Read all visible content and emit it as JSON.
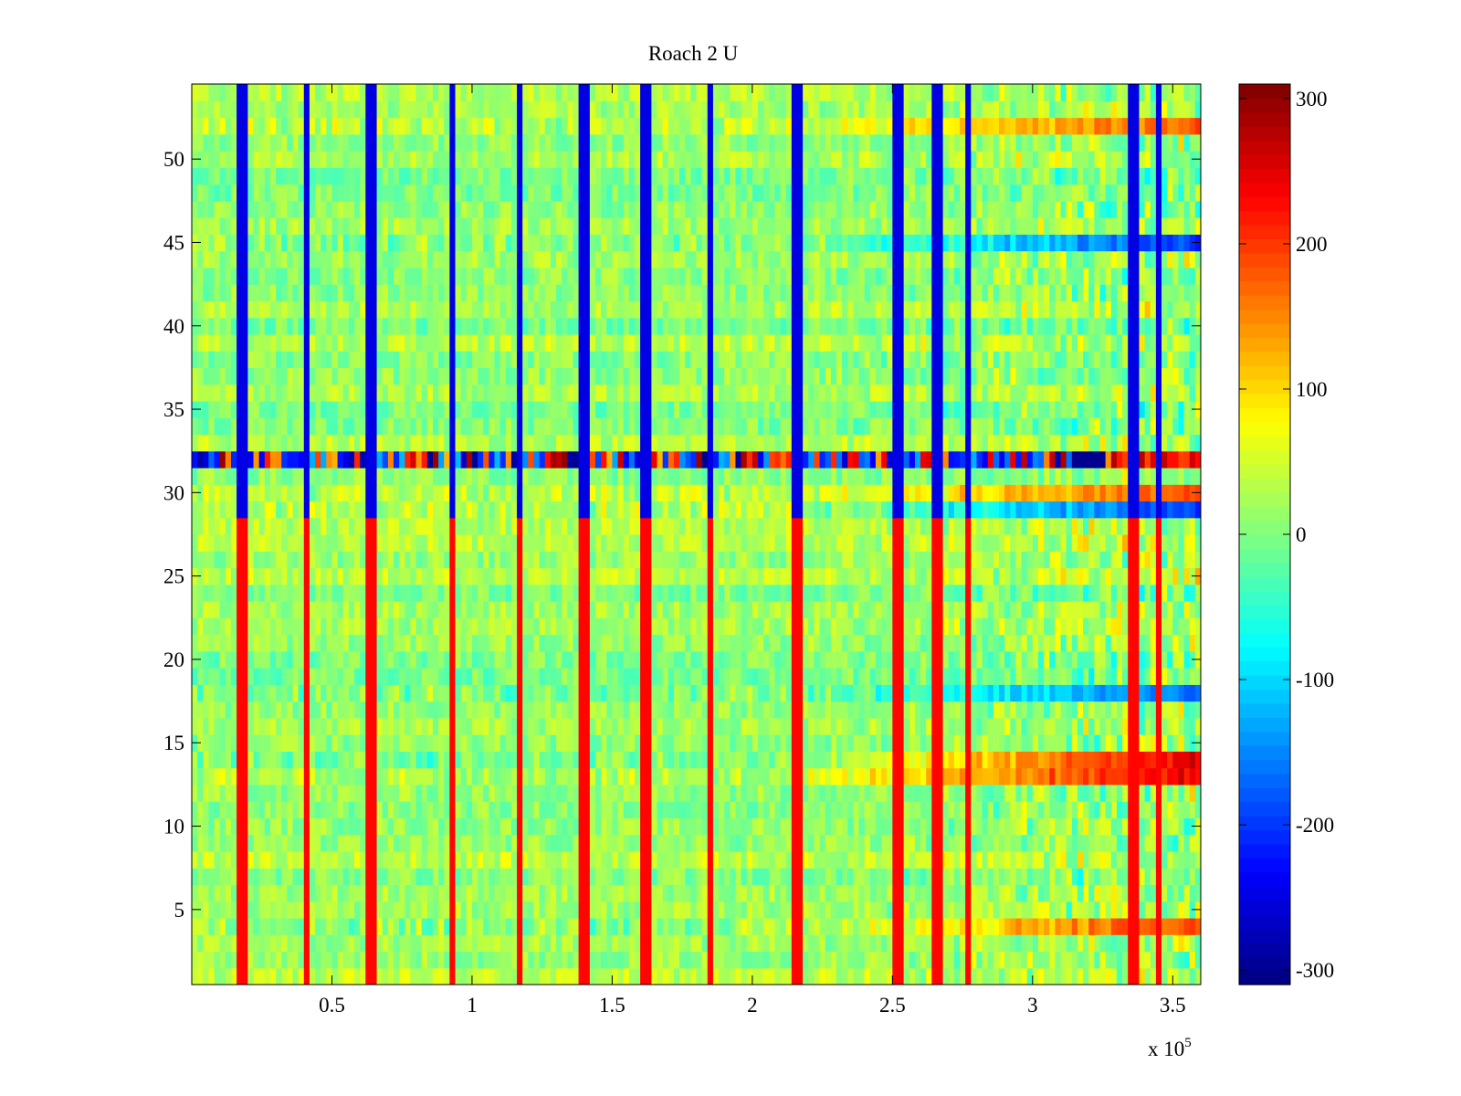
{
  "chart_data": {
    "type": "heatmap",
    "title": "Roach 2 U",
    "xlabel": "",
    "ylabel": "",
    "x_range": [
      0,
      360000
    ],
    "y_range": [
      0.5,
      54.5
    ],
    "x_multiplier_label": "x 10",
    "x_multiplier_exponent": "5",
    "x_ticks": [
      {
        "value": 50000,
        "label": "0.5"
      },
      {
        "value": 100000,
        "label": "1"
      },
      {
        "value": 150000,
        "label": "1.5"
      },
      {
        "value": 200000,
        "label": "2"
      },
      {
        "value": 250000,
        "label": "2.5"
      },
      {
        "value": 300000,
        "label": "3"
      },
      {
        "value": 350000,
        "label": "3.5"
      }
    ],
    "y_ticks": [
      {
        "value": 5,
        "label": "5"
      },
      {
        "value": 10,
        "label": "10"
      },
      {
        "value": 15,
        "label": "15"
      },
      {
        "value": 20,
        "label": "20"
      },
      {
        "value": 25,
        "label": "25"
      },
      {
        "value": 30,
        "label": "30"
      },
      {
        "value": 35,
        "label": "35"
      },
      {
        "value": 40,
        "label": "40"
      },
      {
        "value": 45,
        "label": "45"
      },
      {
        "value": 50,
        "label": "50"
      }
    ],
    "rows": 54,
    "columns": 180,
    "colorbar": {
      "colormap": "jet",
      "range": [
        -310,
        310
      ],
      "ticks": [
        {
          "value": 300,
          "label": "300"
        },
        {
          "value": 200,
          "label": "200"
        },
        {
          "value": 100,
          "label": "100"
        },
        {
          "value": 0,
          "label": "0"
        },
        {
          "value": -100,
          "label": "-100"
        },
        {
          "value": -200,
          "label": "-200"
        },
        {
          "value": -300,
          "label": "-300"
        }
      ]
    },
    "periodic_spikes_x": [
      18000,
      41000,
      64000,
      93000,
      117000,
      140000,
      162000,
      185000,
      216000,
      252000,
      266000,
      277000,
      336000,
      345000
    ],
    "dominant_rows": [
      {
        "row": 32,
        "description": "alternating strong positive/negative band",
        "late_value": -300
      },
      {
        "row": 13,
        "late_value": 250
      },
      {
        "row": 14,
        "late_value": 250
      },
      {
        "row": 52,
        "late_value": 180
      },
      {
        "row": 45,
        "late_value": -200
      },
      {
        "row": 30,
        "late_value": 180
      },
      {
        "row": 29,
        "late_value": -200
      },
      {
        "row": 18,
        "late_value": -170
      },
      {
        "row": 4,
        "late_value": 200
      }
    ],
    "values_note": "Matrix approximated procedurally; background values ~0 to +60 with noise, growing variance beyond x≈2.15e5."
  }
}
